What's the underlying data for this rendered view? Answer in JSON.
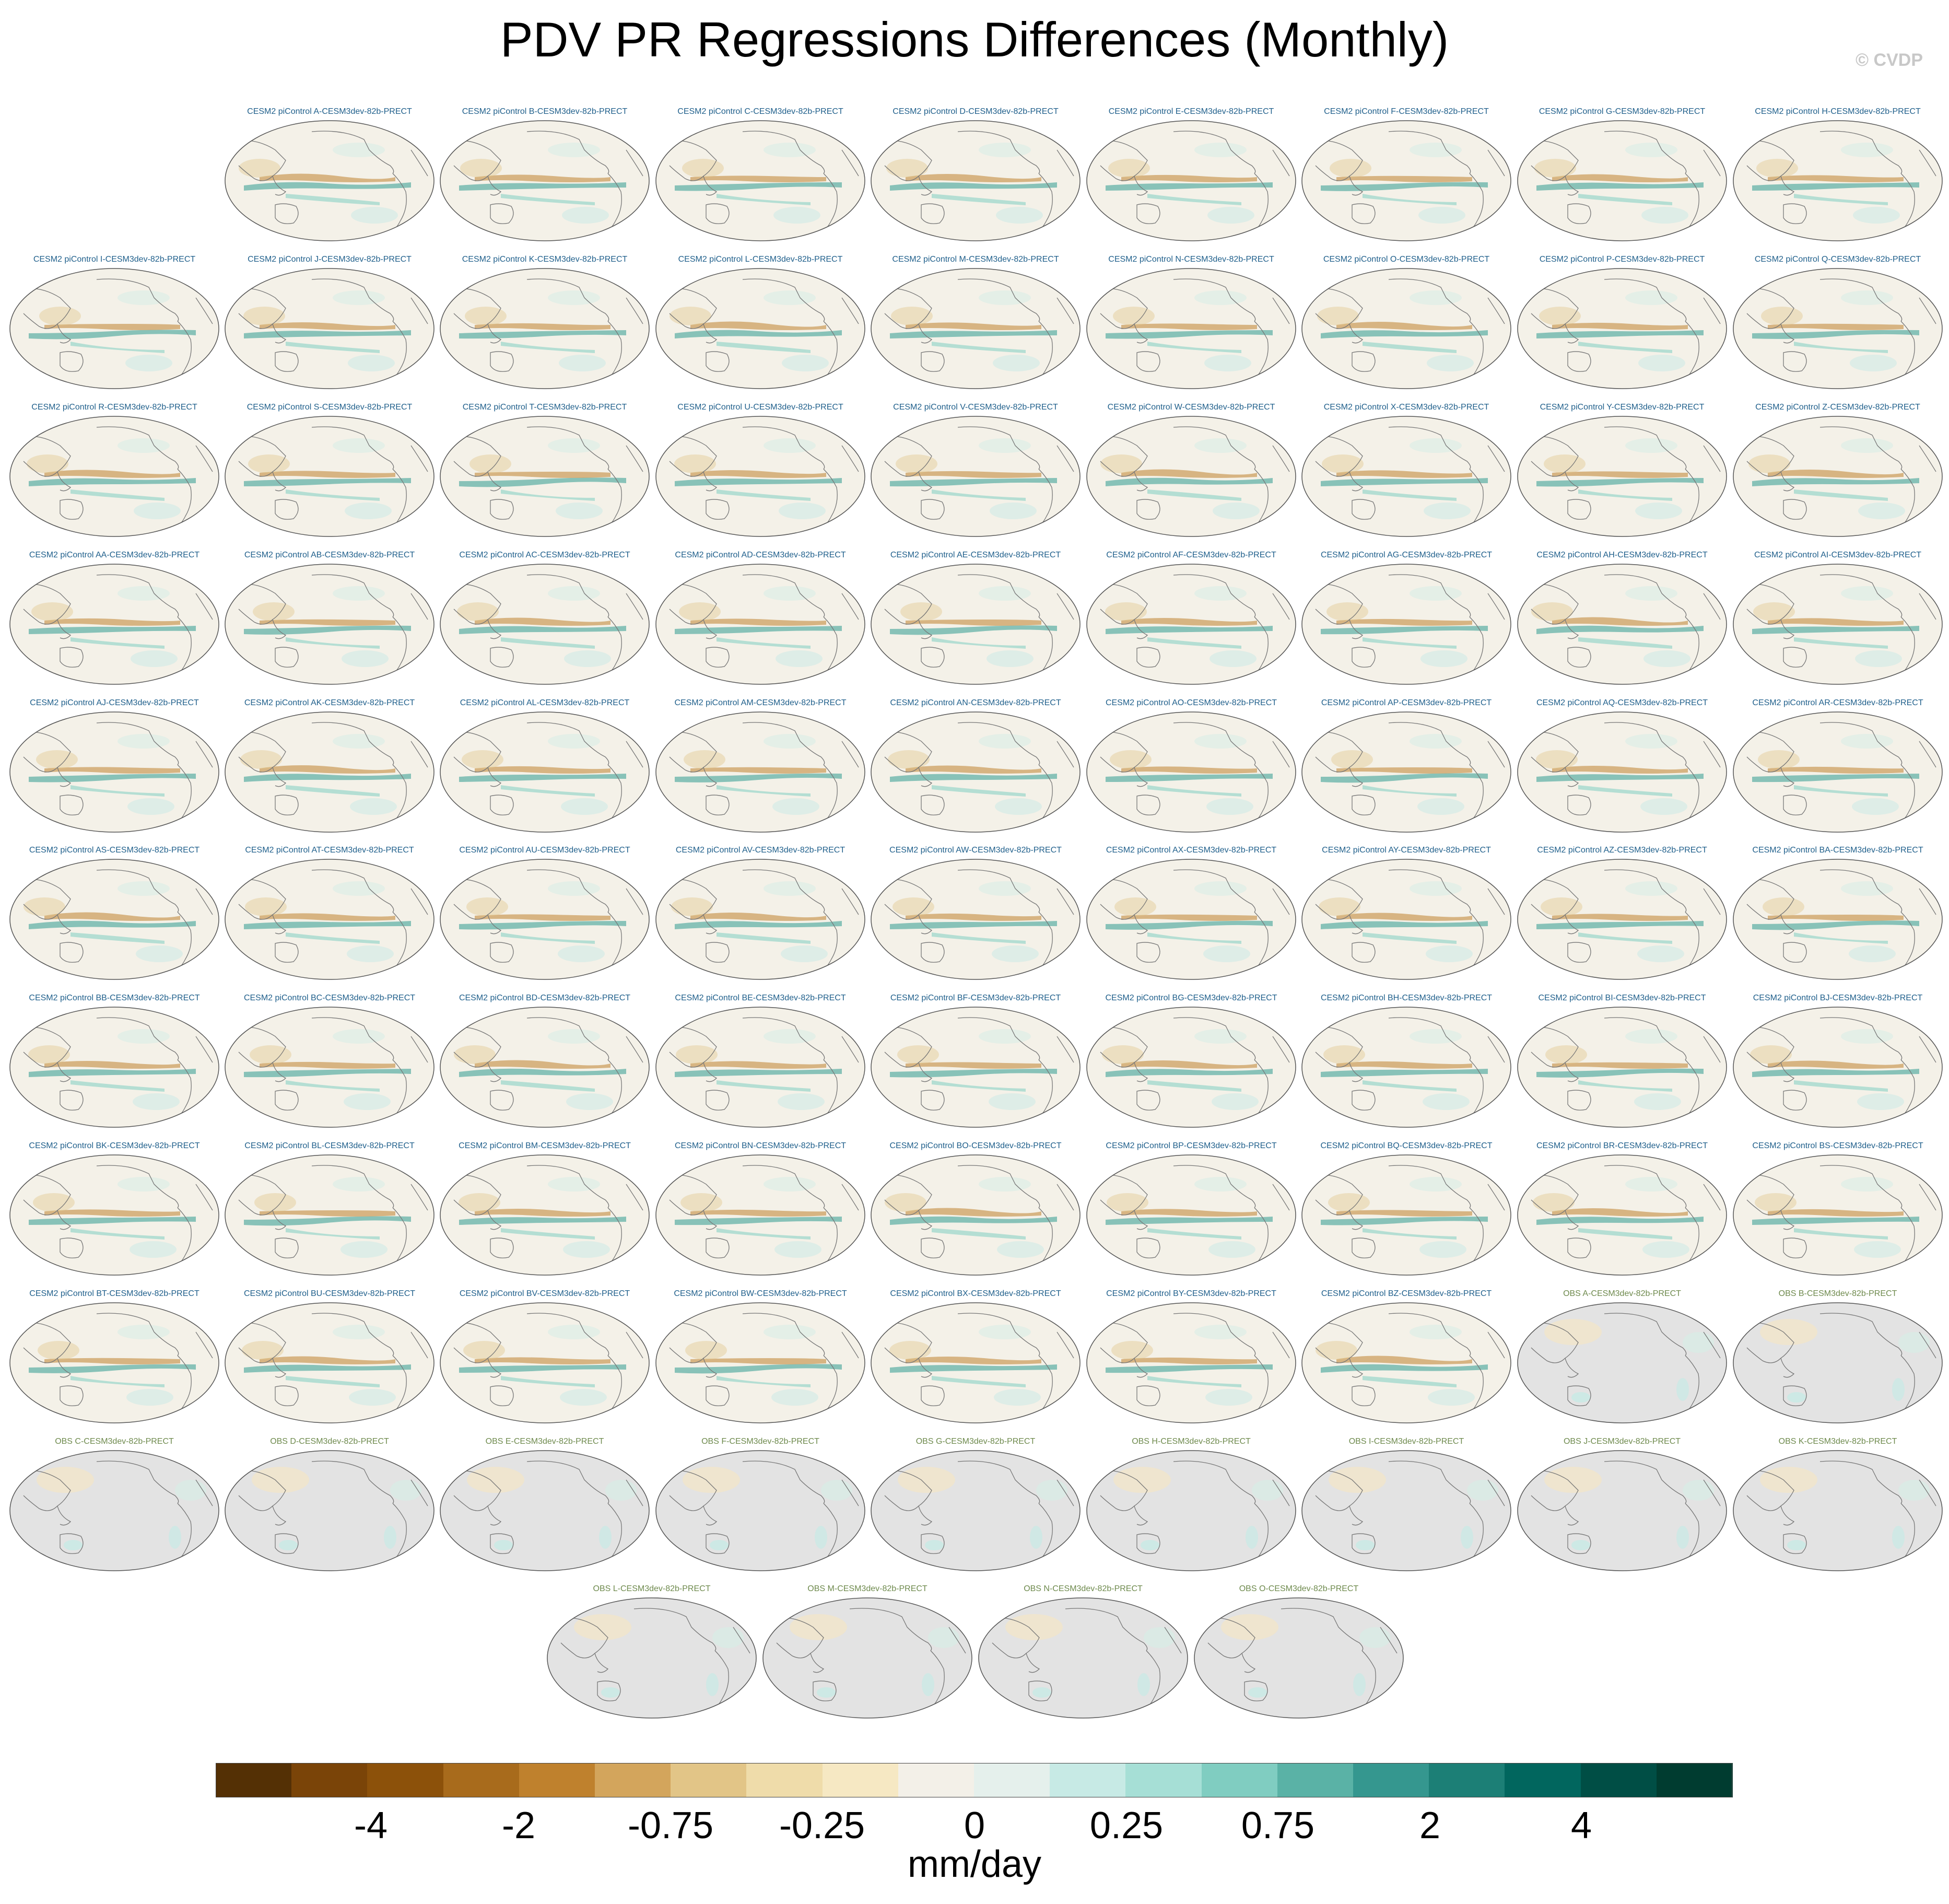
{
  "title": "PDV PR Regressions Differences (Monthly)",
  "copyright": "© CVDP",
  "panels": [
    "CESM2 piControl A-CESM3dev-82b-PRECT",
    "CESM2 piControl B-CESM3dev-82b-PRECT",
    "CESM2 piControl C-CESM3dev-82b-PRECT",
    "CESM2 piControl D-CESM3dev-82b-PRECT",
    "CESM2 piControl E-CESM3dev-82b-PRECT",
    "CESM2 piControl F-CESM3dev-82b-PRECT",
    "CESM2 piControl G-CESM3dev-82b-PRECT",
    "CESM2 piControl H-CESM3dev-82b-PRECT",
    "CESM2 piControl I-CESM3dev-82b-PRECT",
    "CESM2 piControl J-CESM3dev-82b-PRECT",
    "CESM2 piControl K-CESM3dev-82b-PRECT",
    "CESM2 piControl L-CESM3dev-82b-PRECT",
    "CESM2 piControl M-CESM3dev-82b-PRECT",
    "CESM2 piControl N-CESM3dev-82b-PRECT",
    "CESM2 piControl O-CESM3dev-82b-PRECT",
    "CESM2 piControl P-CESM3dev-82b-PRECT",
    "CESM2 piControl Q-CESM3dev-82b-PRECT",
    "CESM2 piControl R-CESM3dev-82b-PRECT",
    "CESM2 piControl S-CESM3dev-82b-PRECT",
    "CESM2 piControl T-CESM3dev-82b-PRECT",
    "CESM2 piControl U-CESM3dev-82b-PRECT",
    "CESM2 piControl V-CESM3dev-82b-PRECT",
    "CESM2 piControl W-CESM3dev-82b-PRECT",
    "CESM2 piControl X-CESM3dev-82b-PRECT",
    "CESM2 piControl Y-CESM3dev-82b-PRECT",
    "CESM2 piControl Z-CESM3dev-82b-PRECT",
    "CESM2 piControl AA-CESM3dev-82b-PRECT",
    "CESM2 piControl AB-CESM3dev-82b-PRECT",
    "CESM2 piControl AC-CESM3dev-82b-PRECT",
    "CESM2 piControl AD-CESM3dev-82b-PRECT",
    "CESM2 piControl AE-CESM3dev-82b-PRECT",
    "CESM2 piControl AF-CESM3dev-82b-PRECT",
    "CESM2 piControl AG-CESM3dev-82b-PRECT",
    "CESM2 piControl AH-CESM3dev-82b-PRECT",
    "CESM2 piControl AI-CESM3dev-82b-PRECT",
    "CESM2 piControl AJ-CESM3dev-82b-PRECT",
    "CESM2 piControl AK-CESM3dev-82b-PRECT",
    "CESM2 piControl AL-CESM3dev-82b-PRECT",
    "CESM2 piControl AM-CESM3dev-82b-PRECT",
    "CESM2 piControl AN-CESM3dev-82b-PRECT",
    "CESM2 piControl AO-CESM3dev-82b-PRECT",
    "CESM2 piControl AP-CESM3dev-82b-PRECT",
    "CESM2 piControl AQ-CESM3dev-82b-PRECT",
    "CESM2 piControl AR-CESM3dev-82b-PRECT",
    "CESM2 piControl AS-CESM3dev-82b-PRECT",
    "CESM2 piControl AT-CESM3dev-82b-PRECT",
    "CESM2 piControl AU-CESM3dev-82b-PRECT",
    "CESM2 piControl AV-CESM3dev-82b-PRECT",
    "CESM2 piControl AW-CESM3dev-82b-PRECT",
    "CESM2 piControl AX-CESM3dev-82b-PRECT",
    "CESM2 piControl AY-CESM3dev-82b-PRECT",
    "CESM2 piControl AZ-CESM3dev-82b-PRECT",
    "CESM2 piControl BA-CESM3dev-82b-PRECT",
    "CESM2 piControl BB-CESM3dev-82b-PRECT",
    "CESM2 piControl BC-CESM3dev-82b-PRECT",
    "CESM2 piControl BD-CESM3dev-82b-PRECT",
    "CESM2 piControl BE-CESM3dev-82b-PRECT",
    "CESM2 piControl BF-CESM3dev-82b-PRECT",
    "CESM2 piControl BG-CESM3dev-82b-PRECT",
    "CESM2 piControl BH-CESM3dev-82b-PRECT",
    "CESM2 piControl BI-CESM3dev-82b-PRECT",
    "CESM2 piControl BJ-CESM3dev-82b-PRECT",
    "CESM2 piControl BK-CESM3dev-82b-PRECT",
    "CESM2 piControl BL-CESM3dev-82b-PRECT",
    "CESM2 piControl BM-CESM3dev-82b-PRECT",
    "CESM2 piControl BN-CESM3dev-82b-PRECT",
    "CESM2 piControl BO-CESM3dev-82b-PRECT",
    "CESM2 piControl BP-CESM3dev-82b-PRECT",
    "CESM2 piControl BQ-CESM3dev-82b-PRECT",
    "CESM2 piControl BR-CESM3dev-82b-PRECT",
    "CESM2 piControl BS-CESM3dev-82b-PRECT",
    "CESM2 piControl BT-CESM3dev-82b-PRECT",
    "CESM2 piControl BU-CESM3dev-82b-PRECT",
    "CESM2 piControl BV-CESM3dev-82b-PRECT",
    "CESM2 piControl BW-CESM3dev-82b-PRECT",
    "CESM2 piControl BX-CESM3dev-82b-PRECT",
    "CESM2 piControl BY-CESM3dev-82b-PRECT",
    "CESM2 piControl BZ-CESM3dev-82b-PRECT",
    "OBS A-CESM3dev-82b-PRECT",
    "OBS B-CESM3dev-82b-PRECT",
    "OBS C-CESM3dev-82b-PRECT",
    "OBS D-CESM3dev-82b-PRECT",
    "OBS E-CESM3dev-82b-PRECT",
    "OBS F-CESM3dev-82b-PRECT",
    "OBS G-CESM3dev-82b-PRECT",
    "OBS H-CESM3dev-82b-PRECT",
    "OBS I-CESM3dev-82b-PRECT",
    "OBS J-CESM3dev-82b-PRECT",
    "OBS K-CESM3dev-82b-PRECT",
    "OBS L-CESM3dev-82b-PRECT",
    "OBS M-CESM3dev-82b-PRECT",
    "OBS N-CESM3dev-82b-PRECT",
    "OBS O-CESM3dev-82b-PRECT"
  ],
  "colorbar": {
    "colors": [
      "#543005",
      "#7a4408",
      "#8c510a",
      "#a86b1c",
      "#bf812d",
      "#d3a55c",
      "#e2c587",
      "#efdcaa",
      "#f6e8c3",
      "#f3f0e8",
      "#e5f0ec",
      "#c7eae5",
      "#a6dfd6",
      "#80cdc1",
      "#5ab2a6",
      "#35978f",
      "#1c7f76",
      "#01665e",
      "#004e45",
      "#003c30"
    ],
    "labels": [
      "-4",
      "-2",
      "-0.75",
      "-0.25",
      "0",
      "0.25",
      "0.75",
      "2",
      "4"
    ],
    "units": "mm/day"
  }
}
